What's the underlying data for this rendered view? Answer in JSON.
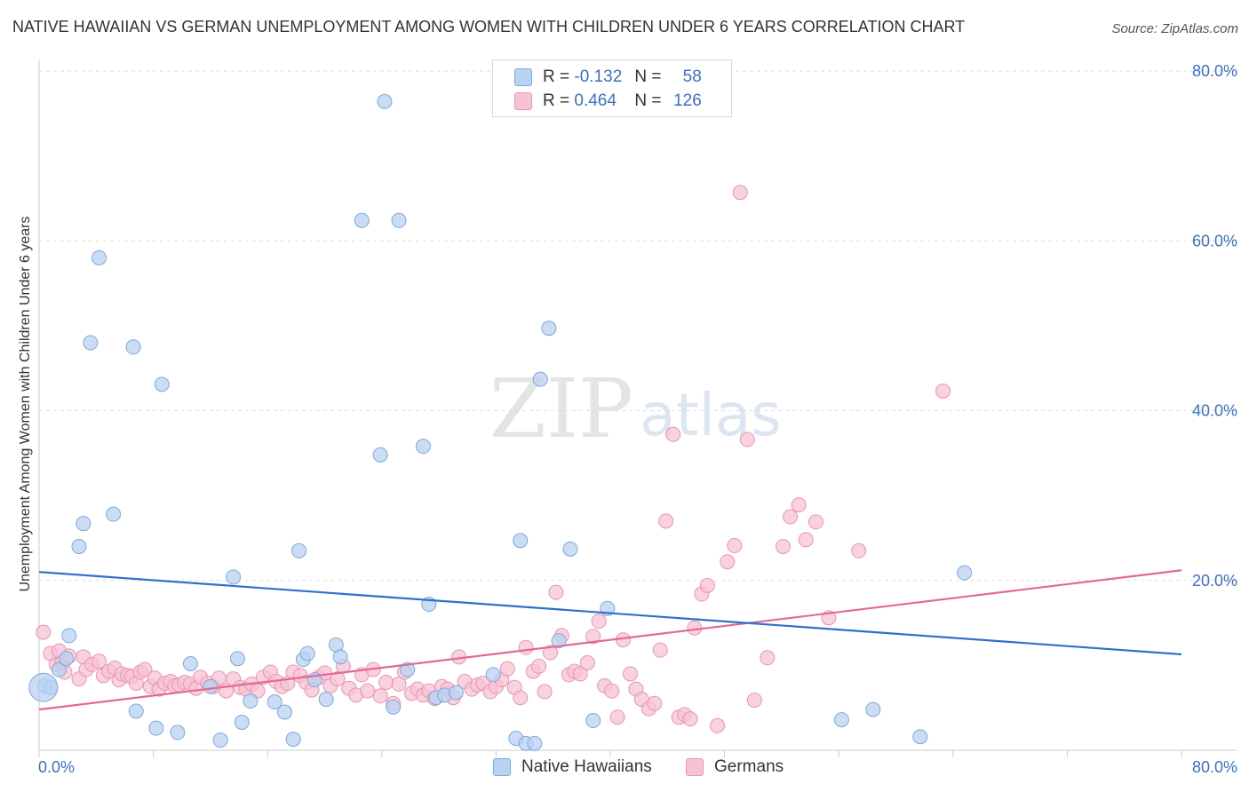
{
  "header": {
    "title": "NATIVE HAWAIIAN VS GERMAN UNEMPLOYMENT AMONG WOMEN WITH CHILDREN UNDER 6 YEARS CORRELATION CHART",
    "source": "Source: ZipAtlas.com"
  },
  "watermark": {
    "zip": "ZIP",
    "atlas": "atlas"
  },
  "legend": {
    "r_label": "R =",
    "n_label": "N =",
    "rows": [
      {
        "r": "-0.132",
        "n": "58"
      },
      {
        "r": "0.464",
        "n": "126"
      }
    ]
  },
  "colors": {
    "native_fill": "#b8d2f2",
    "native_stroke": "#7fa8dc",
    "native_line": "#2f6fcb",
    "german_fill": "#f7c3d4",
    "german_stroke": "#ea94b0",
    "german_line": "#e26a96",
    "tick_label": "#3b6fc4",
    "grid": "#dddddd"
  },
  "chart_data": {
    "type": "scatter",
    "title": "NATIVE HAWAIIAN VS GERMAN UNEMPLOYMENT AMONG WOMEN WITH CHILDREN UNDER 6 YEARS CORRELATION CHART",
    "xlabel": "",
    "ylabel": "Unemployment Among Women with Children Under 6 years",
    "xlim": [
      0,
      80
    ],
    "ylim": [
      0,
      80
    ],
    "x_tick_labels": [
      "0.0%",
      "80.0%"
    ],
    "y_tick_labels": [
      "20.0%",
      "40.0%",
      "60.0%",
      "80.0%"
    ],
    "y_tick_values": [
      20,
      40,
      60,
      80
    ],
    "grid": true,
    "legend_position": "top-center and bottom",
    "series": [
      {
        "name": "Native Hawaiians",
        "r": -0.132,
        "n": 58,
        "trend": {
          "x": [
            0,
            80
          ],
          "y": [
            21.0,
            11.3
          ]
        },
        "points": [
          [
            0.4,
            7.6
          ],
          [
            0.8,
            7.4
          ],
          [
            1.4,
            9.5
          ],
          [
            1.9,
            10.8
          ],
          [
            2.1,
            13.5
          ],
          [
            2.8,
            24.0
          ],
          [
            3.1,
            26.7
          ],
          [
            3.6,
            48.0
          ],
          [
            4.2,
            58.0
          ],
          [
            5.2,
            27.8
          ],
          [
            6.6,
            47.5
          ],
          [
            6.8,
            4.6
          ],
          [
            8.2,
            2.6
          ],
          [
            8.6,
            43.1
          ],
          [
            9.7,
            2.1
          ],
          [
            10.6,
            10.2
          ],
          [
            12.0,
            7.5
          ],
          [
            12.7,
            1.2
          ],
          [
            13.6,
            20.4
          ],
          [
            13.9,
            10.8
          ],
          [
            14.2,
            3.3
          ],
          [
            14.8,
            5.8
          ],
          [
            16.5,
            5.7
          ],
          [
            17.2,
            4.5
          ],
          [
            17.8,
            1.3
          ],
          [
            18.2,
            23.5
          ],
          [
            18.5,
            10.7
          ],
          [
            18.8,
            11.4
          ],
          [
            19.3,
            8.3
          ],
          [
            20.1,
            6.0
          ],
          [
            20.8,
            12.4
          ],
          [
            21.1,
            11.0
          ],
          [
            22.6,
            62.4
          ],
          [
            23.9,
            34.8
          ],
          [
            24.2,
            76.4
          ],
          [
            24.8,
            5.1
          ],
          [
            25.2,
            62.4
          ],
          [
            25.8,
            9.5
          ],
          [
            26.9,
            35.8
          ],
          [
            27.3,
            17.2
          ],
          [
            27.8,
            6.2
          ],
          [
            28.4,
            6.5
          ],
          [
            29.2,
            6.8
          ],
          [
            31.8,
            8.9
          ],
          [
            33.4,
            1.4
          ],
          [
            33.7,
            24.7
          ],
          [
            34.1,
            0.8
          ],
          [
            34.7,
            0.8
          ],
          [
            35.1,
            43.7
          ],
          [
            35.7,
            49.7
          ],
          [
            36.4,
            12.9
          ],
          [
            37.2,
            23.7
          ],
          [
            38.8,
            3.5
          ],
          [
            39.8,
            16.7
          ],
          [
            56.2,
            3.6
          ],
          [
            58.4,
            4.8
          ],
          [
            61.7,
            1.6
          ],
          [
            64.8,
            20.9
          ]
        ]
      },
      {
        "name": "Germans",
        "r": 0.464,
        "n": 126,
        "trend": {
          "x": [
            0,
            80
          ],
          "y": [
            4.8,
            21.2
          ]
        },
        "points": [
          [
            0.3,
            13.9
          ],
          [
            0.8,
            11.4
          ],
          [
            1.2,
            10.1
          ],
          [
            1.4,
            11.7
          ],
          [
            1.6,
            10.3
          ],
          [
            1.8,
            9.2
          ],
          [
            2.1,
            11.1
          ],
          [
            2.8,
            8.4
          ],
          [
            3.1,
            11.0
          ],
          [
            3.3,
            9.5
          ],
          [
            3.7,
            10.1
          ],
          [
            4.2,
            10.5
          ],
          [
            4.5,
            8.8
          ],
          [
            4.9,
            9.3
          ],
          [
            5.3,
            9.7
          ],
          [
            5.6,
            8.3
          ],
          [
            5.8,
            9.0
          ],
          [
            6.2,
            8.8
          ],
          [
            6.5,
            8.7
          ],
          [
            6.8,
            7.9
          ],
          [
            7.1,
            9.2
          ],
          [
            7.4,
            9.5
          ],
          [
            7.8,
            7.5
          ],
          [
            8.1,
            8.5
          ],
          [
            8.4,
            7.2
          ],
          [
            8.8,
            7.9
          ],
          [
            9.2,
            8.1
          ],
          [
            9.5,
            7.6
          ],
          [
            9.8,
            7.7
          ],
          [
            10.2,
            8.0
          ],
          [
            10.6,
            7.8
          ],
          [
            11.0,
            7.3
          ],
          [
            11.3,
            8.6
          ],
          [
            11.8,
            7.9
          ],
          [
            12.2,
            7.5
          ],
          [
            12.6,
            8.5
          ],
          [
            13.1,
            7.0
          ],
          [
            13.6,
            8.4
          ],
          [
            14.1,
            7.4
          ],
          [
            14.5,
            7.2
          ],
          [
            14.9,
            7.8
          ],
          [
            15.3,
            7.0
          ],
          [
            15.7,
            8.6
          ],
          [
            16.2,
            9.2
          ],
          [
            16.6,
            8.1
          ],
          [
            17.0,
            7.5
          ],
          [
            17.4,
            7.9
          ],
          [
            17.8,
            9.2
          ],
          [
            18.3,
            8.8
          ],
          [
            18.7,
            8.0
          ],
          [
            19.1,
            7.1
          ],
          [
            19.6,
            8.6
          ],
          [
            20.0,
            9.1
          ],
          [
            20.4,
            7.6
          ],
          [
            20.9,
            8.4
          ],
          [
            21.3,
            9.9
          ],
          [
            21.7,
            7.3
          ],
          [
            22.2,
            6.5
          ],
          [
            22.6,
            8.9
          ],
          [
            23.0,
            7.0
          ],
          [
            23.4,
            9.5
          ],
          [
            23.9,
            6.4
          ],
          [
            24.3,
            8.0
          ],
          [
            24.8,
            5.5
          ],
          [
            25.2,
            7.8
          ],
          [
            25.6,
            9.2
          ],
          [
            26.1,
            6.7
          ],
          [
            26.5,
            7.2
          ],
          [
            26.9,
            6.5
          ],
          [
            27.3,
            7.0
          ],
          [
            27.7,
            6.1
          ],
          [
            28.2,
            7.5
          ],
          [
            28.6,
            7.2
          ],
          [
            29.0,
            6.2
          ],
          [
            29.4,
            11.0
          ],
          [
            29.8,
            8.1
          ],
          [
            30.3,
            7.2
          ],
          [
            30.7,
            7.7
          ],
          [
            31.1,
            7.9
          ],
          [
            31.6,
            6.9
          ],
          [
            32.0,
            7.5
          ],
          [
            32.4,
            8.3
          ],
          [
            32.8,
            9.6
          ],
          [
            33.3,
            7.4
          ],
          [
            33.7,
            6.2
          ],
          [
            34.1,
            12.1
          ],
          [
            34.6,
            9.3
          ],
          [
            35.0,
            9.9
          ],
          [
            35.4,
            6.9
          ],
          [
            35.8,
            11.5
          ],
          [
            36.2,
            18.6
          ],
          [
            36.6,
            13.5
          ],
          [
            37.1,
            8.9
          ],
          [
            37.5,
            9.3
          ],
          [
            37.9,
            9.0
          ],
          [
            38.4,
            10.3
          ],
          [
            38.8,
            13.4
          ],
          [
            39.2,
            15.2
          ],
          [
            39.6,
            7.6
          ],
          [
            40.1,
            7.0
          ],
          [
            40.5,
            3.9
          ],
          [
            40.9,
            13.0
          ],
          [
            41.4,
            9.0
          ],
          [
            41.8,
            7.2
          ],
          [
            42.2,
            6.0
          ],
          [
            42.7,
            4.9
          ],
          [
            43.1,
            5.5
          ],
          [
            43.5,
            11.8
          ],
          [
            43.9,
            27.0
          ],
          [
            44.4,
            37.2
          ],
          [
            44.8,
            3.9
          ],
          [
            45.2,
            4.2
          ],
          [
            45.6,
            3.7
          ],
          [
            45.9,
            14.4
          ],
          [
            46.4,
            18.4
          ],
          [
            46.8,
            19.4
          ],
          [
            47.5,
            2.9
          ],
          [
            48.2,
            22.2
          ],
          [
            48.7,
            24.1
          ],
          [
            49.1,
            65.7
          ],
          [
            49.6,
            36.6
          ],
          [
            50.1,
            5.9
          ],
          [
            51.0,
            10.9
          ],
          [
            52.1,
            24.0
          ],
          [
            52.6,
            27.5
          ],
          [
            53.2,
            28.9
          ],
          [
            53.7,
            24.8
          ],
          [
            55.3,
            15.6
          ],
          [
            57.4,
            23.5
          ],
          [
            63.3,
            42.3
          ],
          [
            54.4,
            26.9
          ]
        ]
      }
    ]
  },
  "bottom_legend": [
    {
      "label": "Native Hawaiians"
    },
    {
      "label": "Germans"
    }
  ]
}
